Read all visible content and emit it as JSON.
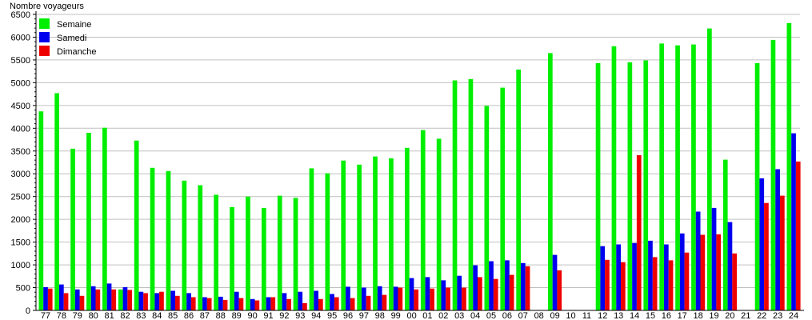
{
  "chart_data": {
    "type": "bar",
    "ylabel": "Nombre voyageurs",
    "ylim": [
      0,
      6500
    ],
    "ytick_step": 500,
    "grid": true,
    "legend_placement": "top-left",
    "categories": [
      "77",
      "78",
      "79",
      "80",
      "81",
      "82",
      "83",
      "84",
      "85",
      "86",
      "87",
      "88",
      "89",
      "90",
      "91",
      "92",
      "93",
      "94",
      "95",
      "96",
      "97",
      "98",
      "99",
      "00",
      "01",
      "02",
      "03",
      "04",
      "05",
      "06",
      "07",
      "08",
      "09",
      "10",
      "11",
      "12",
      "13",
      "14",
      "15",
      "16",
      "17",
      "18",
      "19",
      "20",
      "21",
      "22",
      "23",
      "24"
    ],
    "series": [
      {
        "name": "Semaine",
        "color": "#00ee00",
        "values": [
          4370,
          4770,
          3550,
          3900,
          4010,
          460,
          3730,
          3130,
          3060,
          2850,
          2750,
          2540,
          2270,
          2500,
          2250,
          2520,
          2470,
          3120,
          3010,
          3290,
          3200,
          3380,
          3340,
          3570,
          3960,
          3770,
          5050,
          5080,
          4490,
          4890,
          5290,
          null,
          5650,
          null,
          null,
          5430,
          5800,
          5450,
          5490,
          5860,
          5820,
          5840,
          6190,
          3310,
          null,
          5430,
          5940,
          6310
        ]
      },
      {
        "name": "Samedi",
        "color": "#0000ee",
        "values": [
          510,
          570,
          460,
          530,
          590,
          510,
          410,
          380,
          430,
          380,
          290,
          300,
          410,
          250,
          290,
          380,
          410,
          430,
          360,
          520,
          500,
          530,
          520,
          710,
          730,
          660,
          760,
          990,
          1080,
          1100,
          1040,
          null,
          1220,
          null,
          null,
          1410,
          1450,
          1480,
          1530,
          1450,
          1690,
          2170,
          2250,
          1940,
          null,
          2900,
          3100,
          3890
        ]
      },
      {
        "name": "Dimanche",
        "color": "#ee0000",
        "values": [
          480,
          380,
          320,
          460,
          460,
          450,
          380,
          410,
          320,
          290,
          270,
          230,
          270,
          220,
          290,
          250,
          160,
          250,
          290,
          270,
          320,
          340,
          500,
          460,
          480,
          500,
          500,
          730,
          690,
          780,
          970,
          null,
          880,
          null,
          null,
          1110,
          1060,
          3410,
          1170,
          1100,
          1270,
          1660,
          1670,
          1250,
          null,
          2360,
          2520,
          3270
        ]
      }
    ]
  }
}
